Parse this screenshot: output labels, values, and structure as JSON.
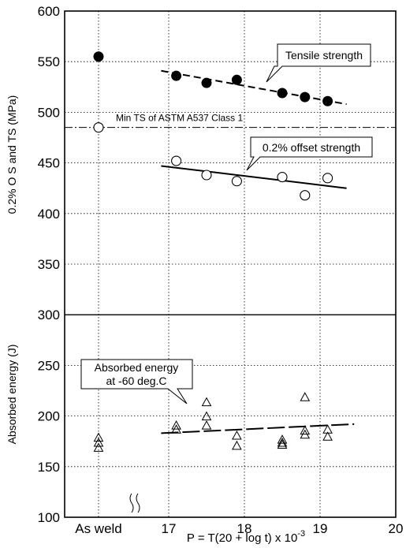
{
  "chart_data": {
    "type": "scatter",
    "title": "",
    "xlabel": "P = T(20 + log t) x 10",
    "xlabel_exponent": "-3",
    "ylabel_upper": "0.2% O S and TS (MPa)",
    "ylabel_lower": "Absorbed energy (J)",
    "ylim": [
      100,
      600
    ],
    "grid": true,
    "y_ticks": [
      "100",
      "150",
      "200",
      "250",
      "300",
      "350",
      "400",
      "450",
      "500",
      "550",
      "600"
    ],
    "x_ticks": [
      "As weld",
      "17",
      "18",
      "19",
      "20"
    ],
    "x_axis_break": "As weld",
    "reference_lines": [
      {
        "label": "Min TS of ASTM A537 Class 1",
        "y": 485
      }
    ],
    "separator_y": 300,
    "series": [
      {
        "name": "Tensile strength",
        "marker": "filled-circle",
        "points": [
          {
            "x": "As weld",
            "y": 555
          },
          {
            "x": 17.1,
            "y": 536
          },
          {
            "x": 17.5,
            "y": 529
          },
          {
            "x": 17.9,
            "y": 532
          },
          {
            "x": 18.5,
            "y": 519
          },
          {
            "x": 18.8,
            "y": 515
          },
          {
            "x": 19.1,
            "y": 511
          }
        ],
        "trend": {
          "style": "dashed",
          "from": [
            16.9,
            541
          ],
          "to": [
            19.35,
            508
          ]
        }
      },
      {
        "name": "0.2% offset strength",
        "marker": "open-circle",
        "points": [
          {
            "x": "As weld",
            "y": 485
          },
          {
            "x": 17.1,
            "y": 452
          },
          {
            "x": 17.5,
            "y": 438
          },
          {
            "x": 17.9,
            "y": 432
          },
          {
            "x": 18.5,
            "y": 436
          },
          {
            "x": 18.8,
            "y": 418
          },
          {
            "x": 19.1,
            "y": 435
          }
        ],
        "trend": {
          "style": "solid",
          "from": [
            16.9,
            447
          ],
          "to": [
            19.35,
            425
          ]
        }
      },
      {
        "name": "Absorbed energy at -60 deg.C",
        "marker": "open-triangle",
        "points": [
          {
            "x": "As weld",
            "y": 179
          },
          {
            "x": "As weld",
            "y": 174
          },
          {
            "x": "As weld",
            "y": 169
          },
          {
            "x": 17.1,
            "y": 191
          },
          {
            "x": 17.1,
            "y": 187
          },
          {
            "x": 17.5,
            "y": 214
          },
          {
            "x": 17.5,
            "y": 200
          },
          {
            "x": 17.5,
            "y": 191
          },
          {
            "x": 17.9,
            "y": 181
          },
          {
            "x": 17.9,
            "y": 171
          },
          {
            "x": 18.5,
            "y": 177
          },
          {
            "x": 18.5,
            "y": 174
          },
          {
            "x": 18.5,
            "y": 172
          },
          {
            "x": 18.8,
            "y": 219
          },
          {
            "x": 18.8,
            "y": 186
          },
          {
            "x": 18.8,
            "y": 182
          },
          {
            "x": 19.1,
            "y": 187
          },
          {
            "x": 19.1,
            "y": 180
          }
        ],
        "trend": {
          "style": "long-dash",
          "from": [
            16.9,
            183
          ],
          "to": [
            19.45,
            192
          ]
        }
      }
    ],
    "annotations": [
      {
        "text": "Tensile strength",
        "series": "Tensile strength"
      },
      {
        "text": "0.2% offset strength",
        "series": "0.2% offset strength"
      },
      {
        "text_lines": [
          "Absorbed energy",
          "at -60 deg.C"
        ],
        "series": "Absorbed energy at -60 deg.C"
      }
    ]
  }
}
